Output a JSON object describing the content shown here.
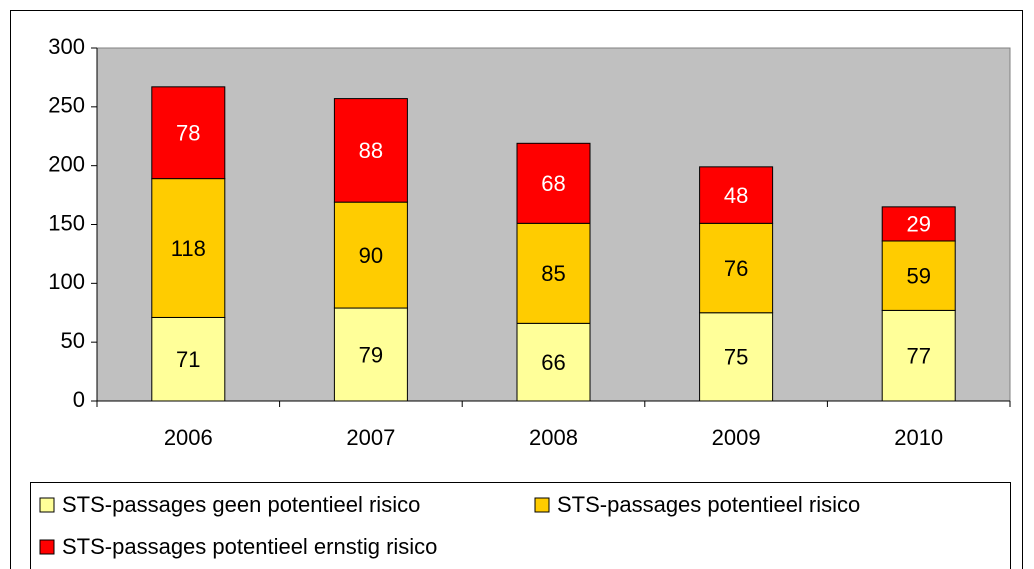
{
  "chart_data": {
    "type": "stacked_bar",
    "categories": [
      "2006",
      "2007",
      "2008",
      "2009",
      "2010"
    ],
    "series": [
      {
        "name": "STS-passages geen potentieel risico",
        "color": "#ffff99",
        "values": [
          71,
          79,
          66,
          75,
          77
        ]
      },
      {
        "name": "STS-passages potentieel risico",
        "color": "#ffcc00",
        "values": [
          118,
          90,
          85,
          76,
          59
        ]
      },
      {
        "name": "STS-passages potentieel ernstig risico",
        "color": "#ff0000",
        "values": [
          78,
          88,
          68,
          48,
          29
        ]
      }
    ],
    "ylim": [
      0,
      300
    ],
    "yticks": [
      0,
      50,
      100,
      150,
      200,
      250,
      300
    ],
    "grid": false,
    "plot_background": "#c0c0c0",
    "legend": "bottom"
  }
}
